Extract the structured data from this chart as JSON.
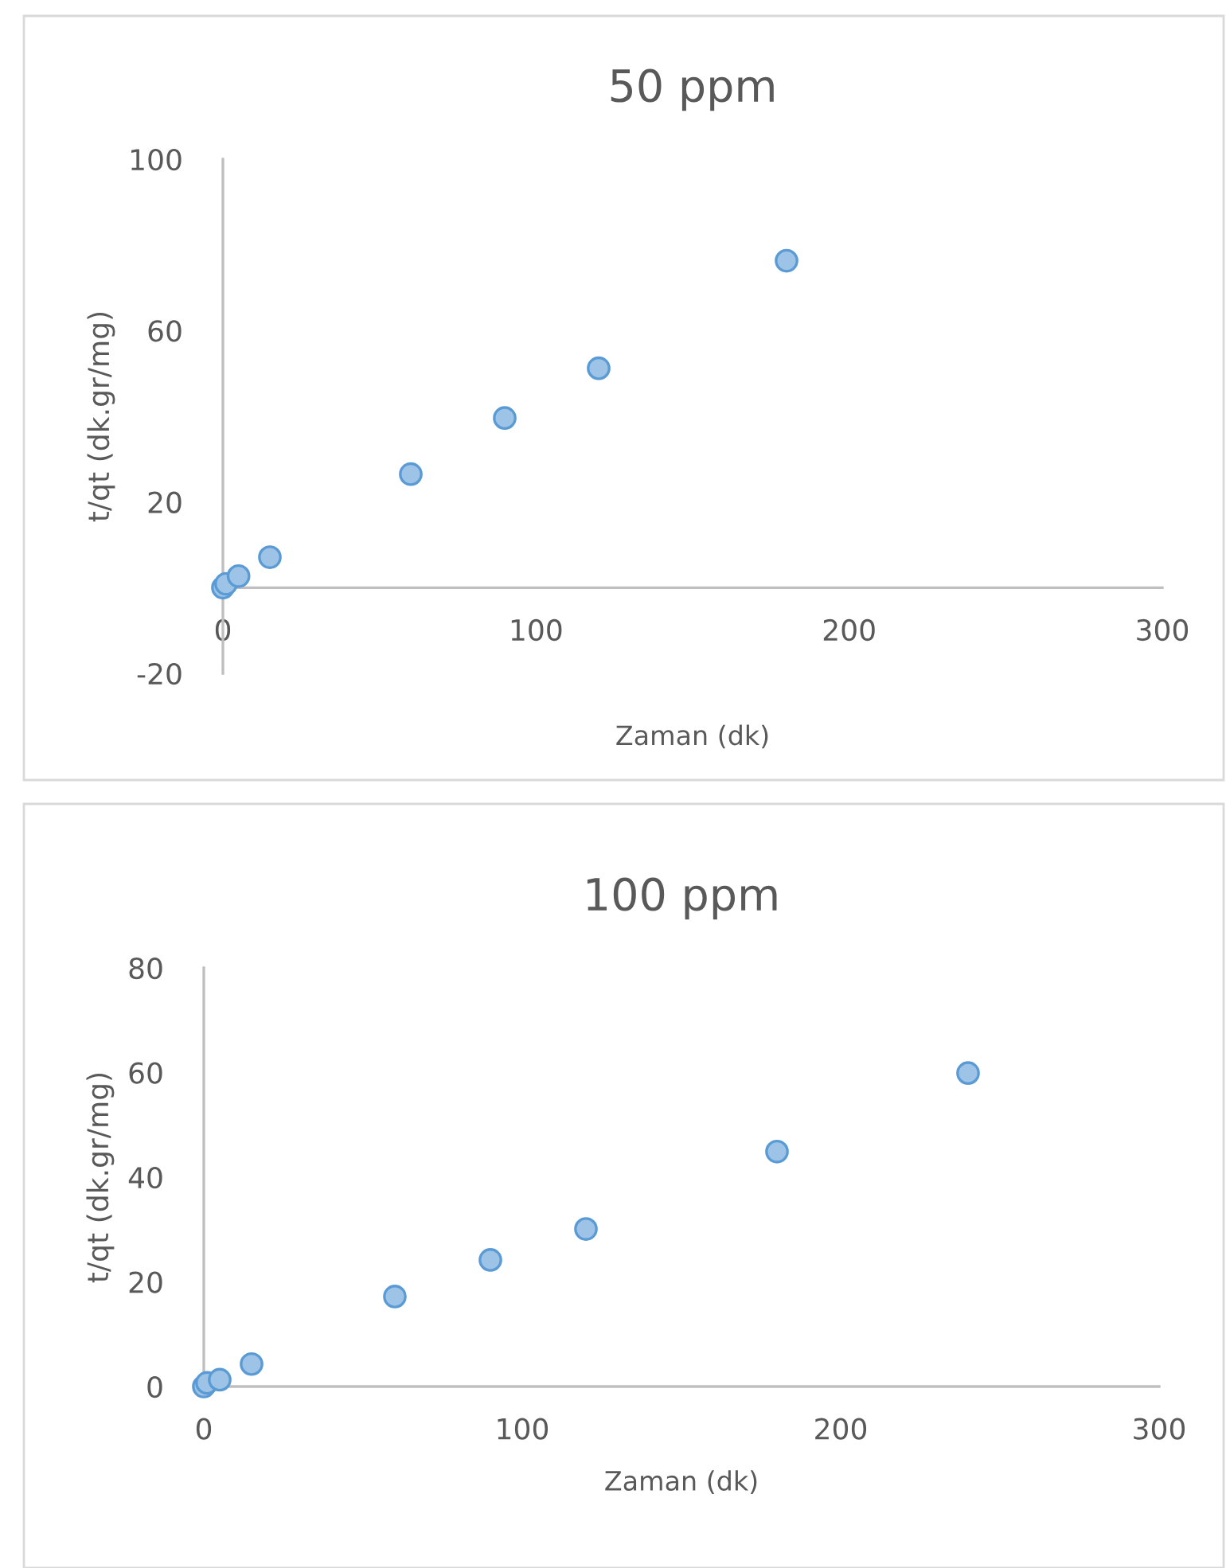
{
  "chart_data": [
    {
      "type": "scatter",
      "title": "50 ppm",
      "xlabel": "Zaman (dk)",
      "ylabel": "t/qt (dk.gr/mg)",
      "marker": "circle",
      "grid": false,
      "legend": false,
      "x": [
        0,
        1,
        5,
        15,
        60,
        90,
        120,
        180
      ],
      "series": [
        {
          "color": "#9dc3e6",
          "values": [
            0,
            0.9,
            2.7,
            7.1,
            26.5,
            39.6,
            51.2,
            76.3
          ]
        }
      ],
      "xlim": [
        0,
        300
      ],
      "xticks": [
        0,
        100,
        200,
        300
      ],
      "ylim": [
        -20,
        100
      ],
      "yticks": [
        -20,
        20,
        60,
        100
      ]
    },
    {
      "type": "scatter",
      "title": "100 ppm",
      "xlabel": "Zaman (dk)",
      "ylabel": "t/qt (dk.gr/mg)",
      "marker": "circle",
      "grid": false,
      "legend": false,
      "x": [
        0,
        1,
        5,
        15,
        60,
        90,
        120,
        180,
        240
      ],
      "series": [
        {
          "color": "#9dc3e6",
          "values": [
            0,
            0.7,
            1.3,
            4.3,
            17.2,
            24.2,
            30.1,
            44.9,
            59.9
          ]
        }
      ],
      "xlim": [
        0,
        300
      ],
      "xticks": [
        0,
        100,
        200,
        300
      ],
      "ylim": [
        0,
        80
      ],
      "yticks": [
        0,
        20,
        40,
        60,
        80
      ]
    }
  ]
}
